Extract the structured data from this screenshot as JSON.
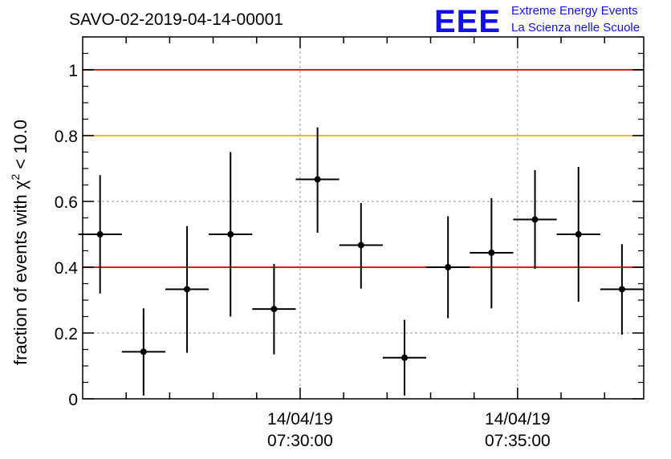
{
  "chart_data": {
    "type": "scatter",
    "title": "SAVO-02-2019-04-14-00001",
    "ylabel_prefix": "fraction of events with",
    "ylabel_symbol": "χ",
    "ylabel_sup": "2",
    "ylabel_suffix": "< 10.0",
    "ylim": [
      0,
      1.1
    ],
    "yticks": [
      0,
      0.2,
      0.4,
      0.6,
      0.8,
      1
    ],
    "yticklabels": [
      "0",
      "0.2",
      "0.4",
      "0.6",
      "0.8",
      "1"
    ],
    "xlim_minutes": [
      0,
      12.9
    ],
    "xticks": [
      {
        "minute": 5,
        "date": "14/04/19",
        "time": "07:30:00"
      },
      {
        "minute": 10,
        "date": "14/04/19",
        "time": "07:35:00"
      }
    ],
    "grid": true,
    "reference_lines": [
      {
        "y": 1.0,
        "color": "#e8191c"
      },
      {
        "y": 0.8,
        "color": "#f5b800"
      },
      {
        "y": 0.4,
        "color": "#e8191c"
      }
    ],
    "x_error_minutes": 0.5,
    "points": [
      {
        "x": 0.4,
        "y": 0.5,
        "ylow": 0.32,
        "yhigh": 0.68
      },
      {
        "x": 1.4,
        "y": 0.143,
        "ylow": 0.01,
        "yhigh": 0.275
      },
      {
        "x": 2.4,
        "y": 0.333,
        "ylow": 0.14,
        "yhigh": 0.525
      },
      {
        "x": 3.4,
        "y": 0.5,
        "ylow": 0.25,
        "yhigh": 0.75
      },
      {
        "x": 4.4,
        "y": 0.273,
        "ylow": 0.135,
        "yhigh": 0.41
      },
      {
        "x": 5.4,
        "y": 0.667,
        "ylow": 0.505,
        "yhigh": 0.825
      },
      {
        "x": 6.4,
        "y": 0.467,
        "ylow": 0.335,
        "yhigh": 0.595
      },
      {
        "x": 7.4,
        "y": 0.125,
        "ylow": 0.01,
        "yhigh": 0.24
      },
      {
        "x": 8.4,
        "y": 0.4,
        "ylow": 0.245,
        "yhigh": 0.555
      },
      {
        "x": 9.4,
        "y": 0.444,
        "ylow": 0.275,
        "yhigh": 0.61
      },
      {
        "x": 10.4,
        "y": 0.545,
        "ylow": 0.395,
        "yhigh": 0.695
      },
      {
        "x": 11.4,
        "y": 0.5,
        "ylow": 0.295,
        "yhigh": 0.705
      },
      {
        "x": 12.4,
        "y": 0.333,
        "ylow": 0.195,
        "yhigh": 0.47
      }
    ]
  },
  "logo": {
    "mark": "EEE",
    "line1": "Extreme Energy Events",
    "line2": "La Scienza nelle Scuole",
    "color": "#1010e8"
  }
}
